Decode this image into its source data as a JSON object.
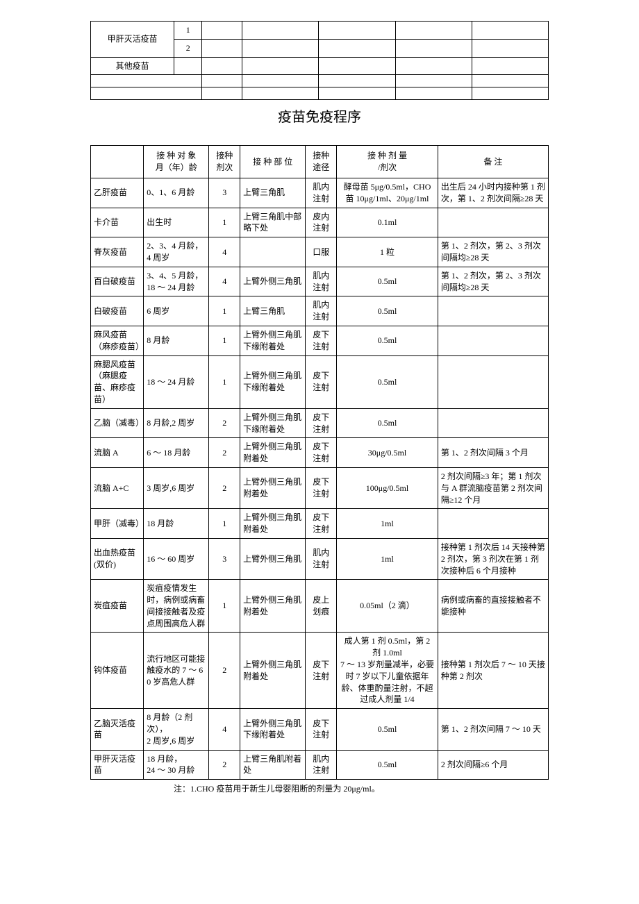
{
  "topTable": {
    "row1_label": "甲肝灭活疫苗",
    "row1_num1": "1",
    "row1_num2": "2",
    "row2_label": "其他疫苗"
  },
  "title": "疫苗免疫程序",
  "headers": {
    "name": "",
    "target": "接 种 对 象\n月（年）龄",
    "dose": "接种\n剂次",
    "site": "接 种 部 位",
    "route": "接种\n途径",
    "amount": "接 种 剂 量\n/剂次",
    "remark": "备  注"
  },
  "rows": [
    {
      "name": "乙肝疫苗",
      "target": "0、1、6 月龄",
      "dose": "3",
      "site": "上臂三角肌",
      "route": "肌内\n注射",
      "amount": "酵母苗  5μg/0.5ml，CHO 苗 10μg/1ml、20μg/1ml",
      "remark": "出生后 24 小时内接种第 1 剂次，第 1、2 剂次间隔≥28  天"
    },
    {
      "name": "卡介苗",
      "target": "出生时",
      "dose": "1",
      "site": "上臂三角肌中部略下处",
      "route": "皮内\n注射",
      "amount": "0.1ml",
      "remark": ""
    },
    {
      "name": "脊灰疫苗",
      "target": "2、3、4 月龄，4 周岁",
      "dose": "4",
      "site": "",
      "route": "口服",
      "amount": "1  粒",
      "remark": "第 1、2 剂次，第 2、3 剂次间隔均≥28  天"
    },
    {
      "name": "百白破疫苗",
      "target": "3、4、5 月龄，18 ～ 24  月龄",
      "dose": "4",
      "site": "上臂外侧三角肌",
      "route": "肌内\n注射",
      "amount": "0.5ml",
      "remark": "第 1、2 剂次，第 2、3 剂次间隔均≥28  天"
    },
    {
      "name": "白破疫苗",
      "target": "6 周岁",
      "dose": "1",
      "site": "上臂三角肌",
      "route": "肌内\n注射",
      "amount": "0.5ml",
      "remark": ""
    },
    {
      "name": "麻风疫苗（麻疹疫苗）",
      "target": "8  月龄",
      "dose": "1",
      "site": "上臂外侧三角肌下缘附着处",
      "route": "皮下\n注射",
      "amount": "0.5ml",
      "remark": ""
    },
    {
      "name": "麻腮风疫苗（麻腮疫苗、麻疹疫苗）",
      "target": "18 ～ 24  月龄",
      "dose": "1",
      "site": "上臂外侧三角肌下缘附着处",
      "route": "皮下\n注射",
      "amount": "0.5ml",
      "remark": ""
    },
    {
      "name": "乙脑（减毒）",
      "target": "8 月龄,2 周岁",
      "dose": "2",
      "site": "上臂外侧三角肌下缘附着处",
      "route": "皮下\n注射",
      "amount": "0.5ml",
      "remark": ""
    },
    {
      "name": "流脑 A",
      "target": "6 ～ 18  月龄",
      "dose": "2",
      "site": "上臂外侧三角肌附着处",
      "route": "皮下\n注射",
      "amount": "30μg/0.5ml",
      "remark": "第  1、2 剂次间隔 3 个月"
    },
    {
      "name": "流脑  A+C",
      "target": "3 周岁,6 周岁",
      "dose": "2",
      "site": "上臂外侧三角肌附着处",
      "route": "皮下\n注射",
      "amount": "100μg/0.5ml",
      "remark": "2 剂次间隔≥3 年；第  1 剂次与 A 群流脑疫苗第 2 剂次间隔≥12 个月"
    },
    {
      "name": "甲肝（减毒）",
      "target": "18  月龄",
      "dose": "1",
      "site": "上臂外侧三角肌附着处",
      "route": "皮下\n注射",
      "amount": "1ml",
      "remark": ""
    },
    {
      "name": "出血热疫苗(双价)",
      "target": "16 ～ 60  周岁",
      "dose": "3",
      "site": "上臂外侧三角肌",
      "route": "肌内\n注射",
      "amount": "1ml",
      "remark": "接种第 1 剂次后 14 天接种第 2 剂次，第 3 剂次在第 1 剂次接种后 6 个月接种"
    },
    {
      "name": "炭疽疫苗",
      "target": "炭疽疫情发生时，病例或病畜间接接触者及疫点周围高危人群",
      "dose": "1",
      "site": "上臂外侧三角肌附着处",
      "route": "皮上\n划痕",
      "amount": "0.05ml（2  滴）",
      "remark": "病例或病畜的直接接触者不能接种"
    },
    {
      "name": "钩体疫苗",
      "target": "流行地区可能接触疫水的  7 ～ 60  岁高危人群",
      "dose": "2",
      "site": "上臂外侧三角肌附着处",
      "route": "皮下\n注射",
      "amount": "成人第  1  剂 0.5ml，第 2  剂  1.0ml\n7 ～ 13 岁剂量减半，必要时 7 岁以下儿童依据年龄、体重酌量注射，不超过成人剂量  1/4",
      "remark": "接种第  1  剂次后  7 ～ 10 天接种第  2  剂次"
    },
    {
      "name": "乙脑灭活疫苗",
      "target": "8  月龄（2 剂次），\n2 周岁,6 周岁",
      "dose": "4",
      "site": "上臂外侧三角肌下缘附着处",
      "route": "皮下\n注射",
      "amount": "0.5ml",
      "remark": "第  1、2 剂次间隔  7 ～ 10 天"
    },
    {
      "name": "甲肝灭活疫苗",
      "target": "18  月龄，\n24 ～ 30  月龄",
      "dose": "2",
      "site": "上臂三角肌附着处",
      "route": "肌内\n注射",
      "amount": "0.5ml",
      "remark": "2 剂次间隔≥6 个月"
    }
  ],
  "footnote": "注：1.CHO  疫苗用于新生儿母婴阻断的剂量为  20μg/ml。"
}
